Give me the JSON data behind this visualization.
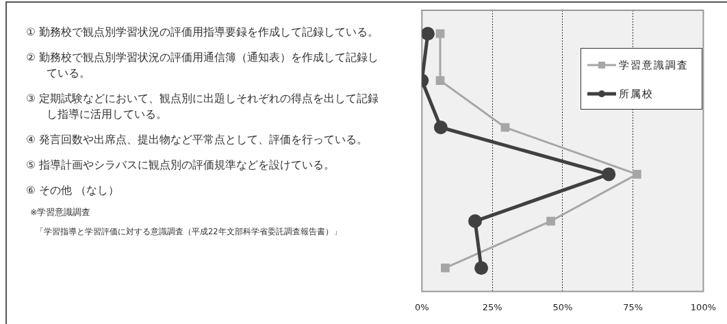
{
  "chart_data": {
    "type": "line",
    "orientation": "horizontal",
    "categories": [
      null,
      null,
      null,
      null,
      null,
      null
    ],
    "series": [
      {
        "name": "学習意識調査",
        "color": "#a6a6a6",
        "marker": "square",
        "values": [
          6.5,
          6.5,
          29.6,
          76.4,
          45.8,
          8.3
        ]
      },
      {
        "name": "所属校",
        "color": "#404040",
        "marker": "circle",
        "values": [
          2.1,
          0,
          6.7,
          66.4,
          18.9,
          21.1
        ]
      }
    ],
    "xlim": [
      0,
      100
    ],
    "xticks": [
      {
        "value": 0,
        "label": "0%"
      },
      {
        "value": 25,
        "label": "25%"
      },
      {
        "value": 50,
        "label": "50%"
      },
      {
        "value": 75,
        "label": "75%"
      },
      {
        "value": 100,
        "label": "100%"
      }
    ],
    "grid": "x",
    "legend": "top right",
    "tick_labels": "x",
    "annotations": [
      "①  勤務校で観点別学習状況の評価用指導要録を作成して記録している。",
      "②  勤務校で観点別学習状況の評価用通信簿（通知表）を作成して記録している。",
      "③  定期試験などにおいて、観点別に出題しそれぞれの得点を出して記録し指導に活用している。",
      "④  発言回数や出席点、提出物など平常点として、評価を行っている。",
      "⑤  指導計画やシラバスに観点別の評価規準などを設けている。",
      "⑥  その他 （なし）",
      "※学習意識調査",
      "「学習指導と学習評価に対する意識調査（平成22年文部科学省委託調査報告書）」"
    ]
  }
}
